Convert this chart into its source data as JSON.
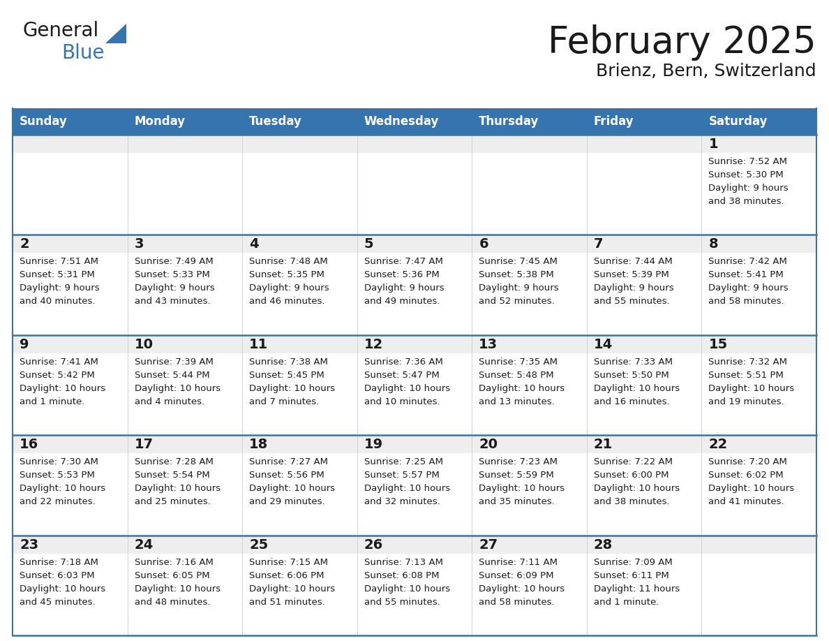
{
  "title": "February 2025",
  "subtitle": "Brienz, Bern, Switzerland",
  "header_color": "#3674b0",
  "header_text_color": "#ffffff",
  "border_color": "#3674b0",
  "day_num_bg": "#efefef",
  "cell_bg": "#ffffff",
  "text_color": "#1a1a1a",
  "days_of_week": [
    "Sunday",
    "Monday",
    "Tuesday",
    "Wednesday",
    "Thursday",
    "Friday",
    "Saturday"
  ],
  "logo_text1": "General",
  "logo_text2": "Blue",
  "logo_triangle_color": "#3674b0",
  "calendar_data": [
    [
      null,
      null,
      null,
      null,
      null,
      null,
      {
        "day": 1,
        "sunrise": "7:52 AM",
        "sunset": "5:30 PM",
        "daylight": "9 hours\nand 38 minutes."
      }
    ],
    [
      {
        "day": 2,
        "sunrise": "7:51 AM",
        "sunset": "5:31 PM",
        "daylight": "9 hours\nand 40 minutes."
      },
      {
        "day": 3,
        "sunrise": "7:49 AM",
        "sunset": "5:33 PM",
        "daylight": "9 hours\nand 43 minutes."
      },
      {
        "day": 4,
        "sunrise": "7:48 AM",
        "sunset": "5:35 PM",
        "daylight": "9 hours\nand 46 minutes."
      },
      {
        "day": 5,
        "sunrise": "7:47 AM",
        "sunset": "5:36 PM",
        "daylight": "9 hours\nand 49 minutes."
      },
      {
        "day": 6,
        "sunrise": "7:45 AM",
        "sunset": "5:38 PM",
        "daylight": "9 hours\nand 52 minutes."
      },
      {
        "day": 7,
        "sunrise": "7:44 AM",
        "sunset": "5:39 PM",
        "daylight": "9 hours\nand 55 minutes."
      },
      {
        "day": 8,
        "sunrise": "7:42 AM",
        "sunset": "5:41 PM",
        "daylight": "9 hours\nand 58 minutes."
      }
    ],
    [
      {
        "day": 9,
        "sunrise": "7:41 AM",
        "sunset": "5:42 PM",
        "daylight": "10 hours\nand 1 minute."
      },
      {
        "day": 10,
        "sunrise": "7:39 AM",
        "sunset": "5:44 PM",
        "daylight": "10 hours\nand 4 minutes."
      },
      {
        "day": 11,
        "sunrise": "7:38 AM",
        "sunset": "5:45 PM",
        "daylight": "10 hours\nand 7 minutes."
      },
      {
        "day": 12,
        "sunrise": "7:36 AM",
        "sunset": "5:47 PM",
        "daylight": "10 hours\nand 10 minutes."
      },
      {
        "day": 13,
        "sunrise": "7:35 AM",
        "sunset": "5:48 PM",
        "daylight": "10 hours\nand 13 minutes."
      },
      {
        "day": 14,
        "sunrise": "7:33 AM",
        "sunset": "5:50 PM",
        "daylight": "10 hours\nand 16 minutes."
      },
      {
        "day": 15,
        "sunrise": "7:32 AM",
        "sunset": "5:51 PM",
        "daylight": "10 hours\nand 19 minutes."
      }
    ],
    [
      {
        "day": 16,
        "sunrise": "7:30 AM",
        "sunset": "5:53 PM",
        "daylight": "10 hours\nand 22 minutes."
      },
      {
        "day": 17,
        "sunrise": "7:28 AM",
        "sunset": "5:54 PM",
        "daylight": "10 hours\nand 25 minutes."
      },
      {
        "day": 18,
        "sunrise": "7:27 AM",
        "sunset": "5:56 PM",
        "daylight": "10 hours\nand 29 minutes."
      },
      {
        "day": 19,
        "sunrise": "7:25 AM",
        "sunset": "5:57 PM",
        "daylight": "10 hours\nand 32 minutes."
      },
      {
        "day": 20,
        "sunrise": "7:23 AM",
        "sunset": "5:59 PM",
        "daylight": "10 hours\nand 35 minutes."
      },
      {
        "day": 21,
        "sunrise": "7:22 AM",
        "sunset": "6:00 PM",
        "daylight": "10 hours\nand 38 minutes."
      },
      {
        "day": 22,
        "sunrise": "7:20 AM",
        "sunset": "6:02 PM",
        "daylight": "10 hours\nand 41 minutes."
      }
    ],
    [
      {
        "day": 23,
        "sunrise": "7:18 AM",
        "sunset": "6:03 PM",
        "daylight": "10 hours\nand 45 minutes."
      },
      {
        "day": 24,
        "sunrise": "7:16 AM",
        "sunset": "6:05 PM",
        "daylight": "10 hours\nand 48 minutes."
      },
      {
        "day": 25,
        "sunrise": "7:15 AM",
        "sunset": "6:06 PM",
        "daylight": "10 hours\nand 51 minutes."
      },
      {
        "day": 26,
        "sunrise": "7:13 AM",
        "sunset": "6:08 PM",
        "daylight": "10 hours\nand 55 minutes."
      },
      {
        "day": 27,
        "sunrise": "7:11 AM",
        "sunset": "6:09 PM",
        "daylight": "10 hours\nand 58 minutes."
      },
      {
        "day": 28,
        "sunrise": "7:09 AM",
        "sunset": "6:11 PM",
        "daylight": "11 hours\nand 1 minute."
      },
      null
    ]
  ],
  "figsize": [
    11.88,
    9.18
  ],
  "dpi": 100
}
